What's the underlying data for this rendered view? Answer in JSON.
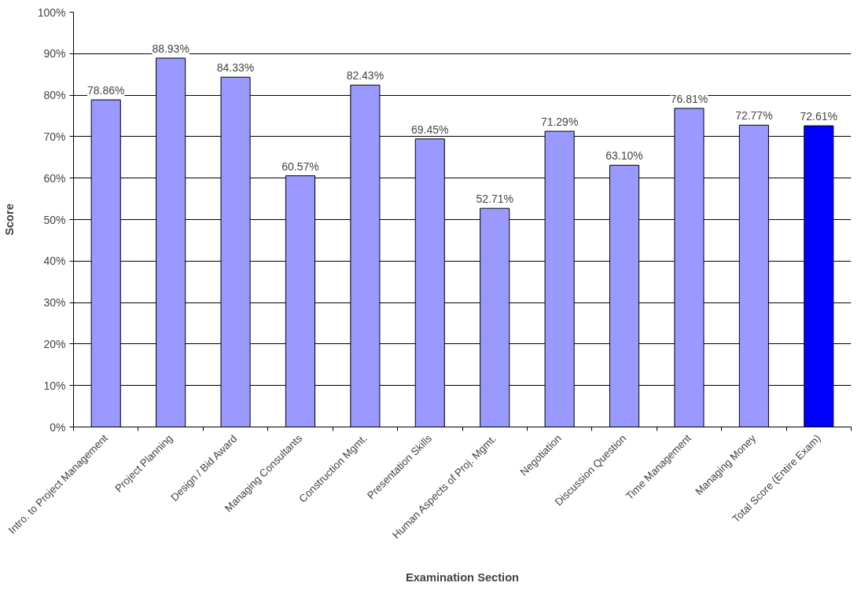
{
  "chart_data": {
    "type": "bar",
    "xlabel": "Examination Section",
    "ylabel": "Score",
    "categories": [
      "Intro. to Project Management",
      "Project Planning",
      "Design / Bid Award",
      "Managing Consultants",
      "Construction Mgmt.",
      "Presentation Skills",
      "Human Aspects of Proj. Mgmt.",
      "Negotiation",
      "Discussion Question",
      "Time Management",
      "Managing Money",
      "Total Score (Entire Exam)"
    ],
    "values": [
      78.86,
      88.93,
      84.33,
      60.57,
      82.43,
      69.45,
      52.71,
      71.29,
      63.1,
      76.81,
      72.77,
      72.61
    ],
    "colors": [
      "#9999ff",
      "#9999ff",
      "#9999ff",
      "#9999ff",
      "#9999ff",
      "#9999ff",
      "#9999ff",
      "#9999ff",
      "#9999ff",
      "#9999ff",
      "#9999ff",
      "#0000ff"
    ],
    "value_labels": [
      "78.86%",
      "88.93%",
      "84.33%",
      "60.57%",
      "82.43%",
      "69.45%",
      "52.71%",
      "71.29%",
      "63.10%",
      "76.81%",
      "72.77%",
      "72.61%"
    ],
    "ylim": [
      0,
      100
    ],
    "yticks": [
      {
        "value": 0,
        "label": "0%"
      },
      {
        "value": 10,
        "label": "10%"
      },
      {
        "value": 20,
        "label": "20%"
      },
      {
        "value": 30,
        "label": "30%"
      },
      {
        "value": 40,
        "label": "40%"
      },
      {
        "value": 50,
        "label": "50%"
      },
      {
        "value": 60,
        "label": "60%"
      },
      {
        "value": 70,
        "label": "70%"
      },
      {
        "value": 80,
        "label": "80%"
      },
      {
        "value": 90,
        "label": "90%"
      },
      {
        "value": 100,
        "label": "100%"
      }
    ],
    "grid": "y"
  }
}
